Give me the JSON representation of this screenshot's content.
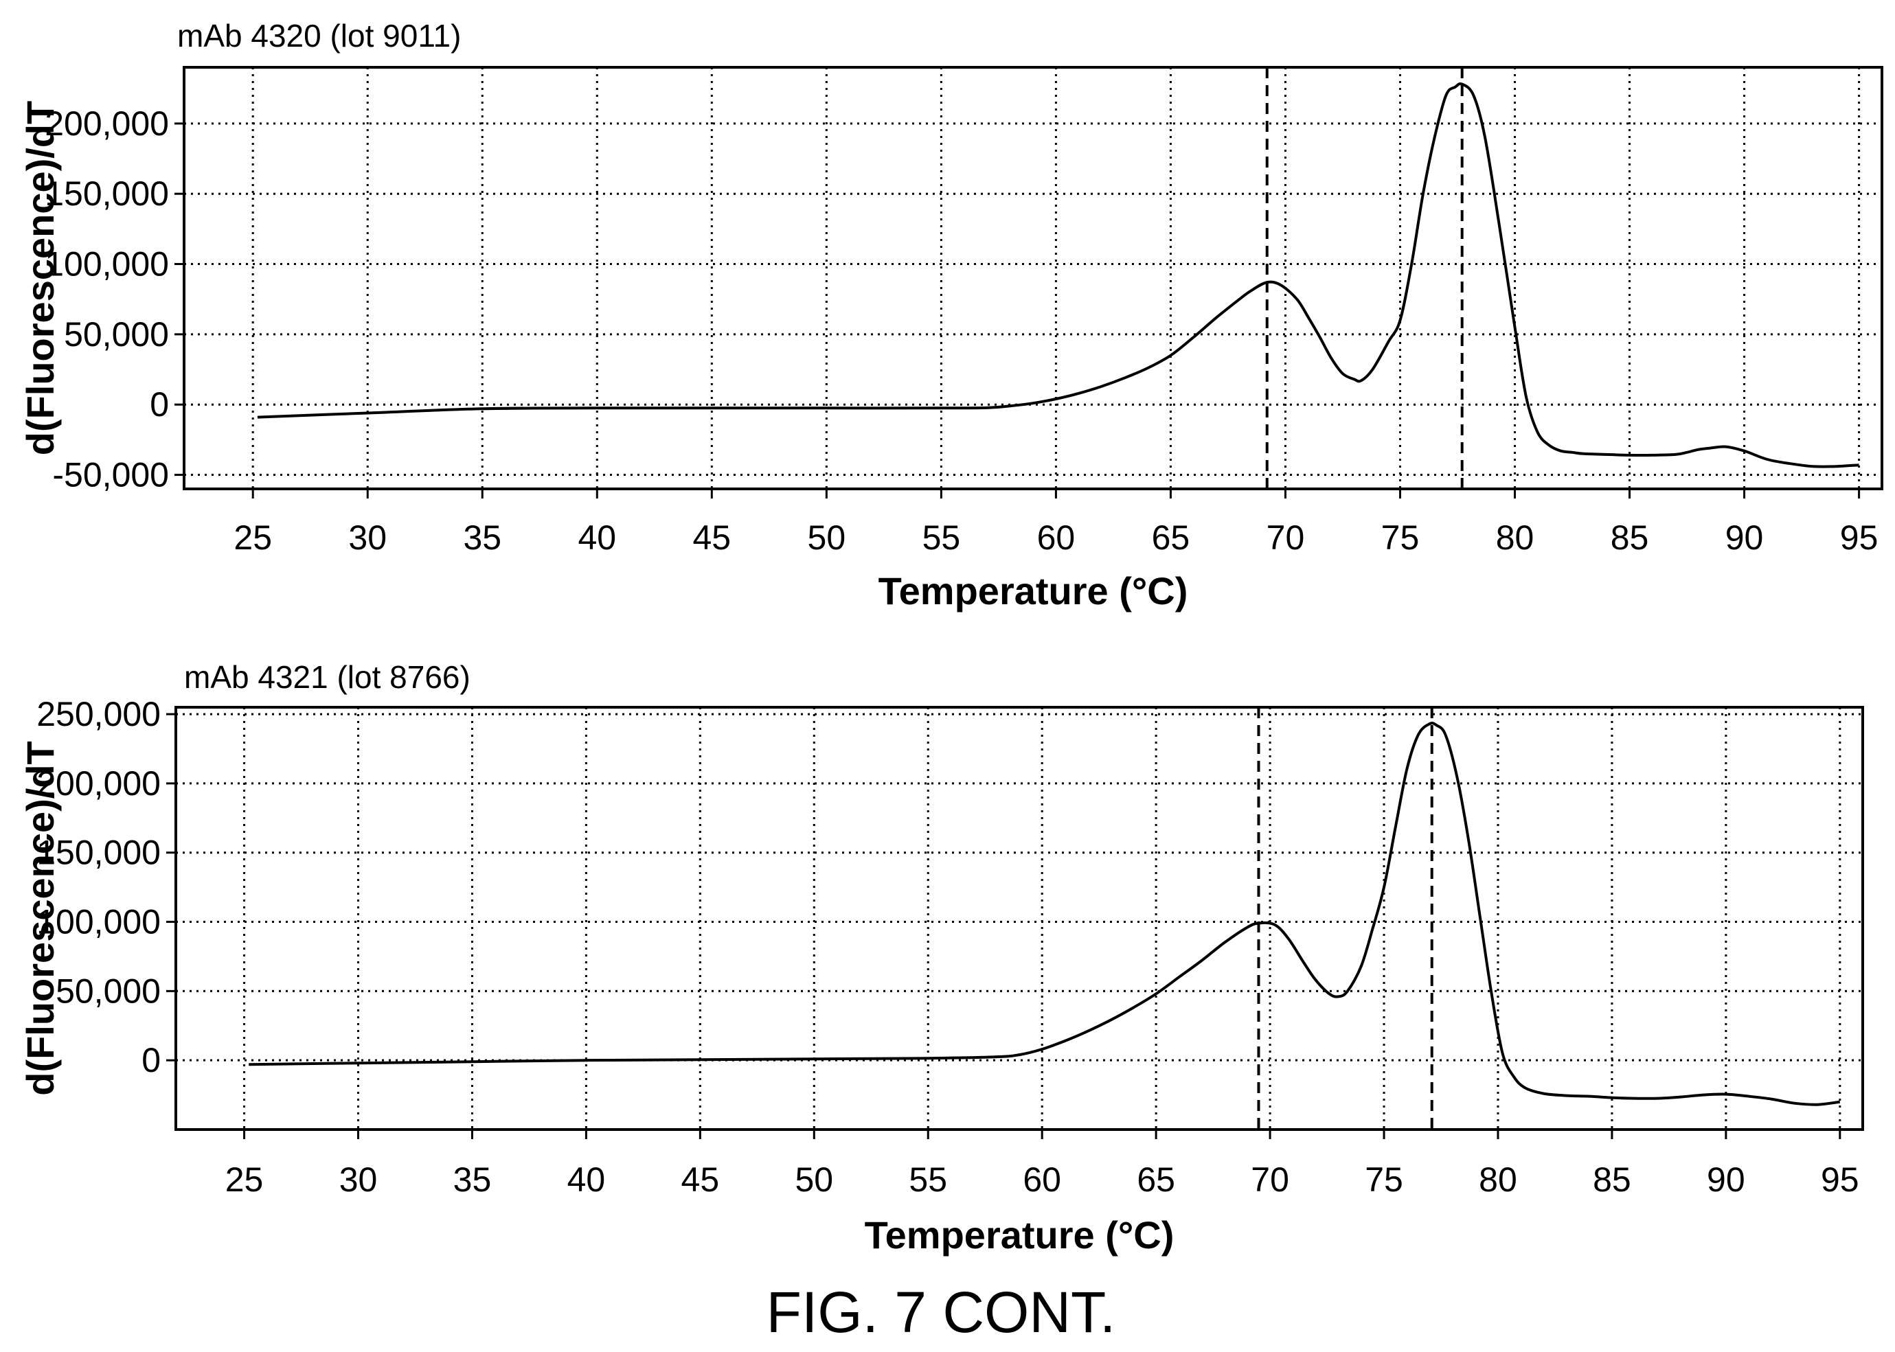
{
  "figure": {
    "caption": "FIG. 7 CONT."
  },
  "chart_data": [
    {
      "type": "line",
      "title": "mAb 4320 (lot 9011)",
      "xlabel": "Temperature (°C)",
      "ylabel": "d(Fluorescence)/dT",
      "xlim": [
        22,
        96
      ],
      "ylim": [
        -60000,
        240000
      ],
      "xticks": [
        25,
        30,
        35,
        40,
        45,
        50,
        55,
        60,
        65,
        70,
        75,
        80,
        85,
        90,
        95
      ],
      "xtick_labels": [
        "25",
        "30",
        "35",
        "40",
        "45",
        "50",
        "55",
        "60",
        "65",
        "70",
        "75",
        "80",
        "85",
        "90",
        "95"
      ],
      "yticks": [
        -50000,
        0,
        50000,
        100000,
        150000,
        200000
      ],
      "ytick_labels": [
        "-50,000",
        "0",
        "50,000",
        "100,000",
        "150,000",
        "200,000"
      ],
      "grid": true,
      "vertical_markers": [
        69.2,
        77.7
      ],
      "series": [
        {
          "x": [
            25.2,
            30,
            35,
            40,
            45,
            50,
            55,
            57,
            58,
            59,
            60,
            61,
            62,
            63,
            64,
            65,
            66,
            67,
            68,
            68.5,
            69.2,
            69.8,
            70.5,
            71,
            71.5,
            72,
            72.5,
            73,
            73.3,
            73.8,
            74.5,
            75,
            75.5,
            76,
            76.5,
            77,
            77.4,
            77.7,
            78.2,
            78.7,
            79.3,
            80,
            80.5,
            81,
            81.5,
            82,
            82.5,
            83,
            84,
            85,
            86,
            87,
            87.5,
            88,
            88.5,
            89.2,
            90,
            91,
            92,
            93,
            94,
            95
          ],
          "y": [
            -9000,
            -6000,
            -3000,
            -2500,
            -2500,
            -2500,
            -2500,
            -2300,
            -1000,
            1000,
            4000,
            8000,
            13000,
            19000,
            26000,
            35000,
            48000,
            62000,
            75000,
            81000,
            87000,
            85000,
            75000,
            62000,
            48000,
            33000,
            22000,
            18000,
            17000,
            25000,
            45000,
            60000,
            100000,
            150000,
            190000,
            220000,
            226000,
            228000,
            220000,
            190000,
            130000,
            55000,
            5000,
            -20000,
            -29000,
            -33000,
            -34000,
            -35000,
            -35500,
            -36000,
            -36000,
            -35500,
            -34000,
            -32000,
            -31000,
            -30000,
            -33000,
            -39000,
            -42000,
            -44000,
            -44000,
            -43000
          ]
        }
      ]
    },
    {
      "type": "line",
      "title": "mAb 4321 (lot 8766)",
      "xlabel": "Temperature (°C)",
      "ylabel": "d(Fluorescence)/dT",
      "xlim": [
        22,
        96
      ],
      "ylim": [
        -50000,
        255000
      ],
      "xticks": [
        25,
        30,
        35,
        40,
        45,
        50,
        55,
        60,
        65,
        70,
        75,
        80,
        85,
        90,
        95
      ],
      "xtick_labels": [
        "25",
        "30",
        "35",
        "40",
        "45",
        "50",
        "55",
        "60",
        "65",
        "70",
        "75",
        "80",
        "85",
        "90",
        "95"
      ],
      "yticks": [
        0,
        50000,
        100000,
        150000,
        200000,
        250000
      ],
      "ytick_labels": [
        "0",
        "50,000",
        "100,000",
        "150,000",
        "200,000",
        "250,000"
      ],
      "grid": true,
      "vertical_markers": [
        69.5,
        77.1
      ],
      "series": [
        {
          "x": [
            25.2,
            30,
            35,
            40,
            45,
            50,
            55,
            58,
            59,
            60,
            61,
            62,
            63,
            64,
            65,
            66,
            67,
            68,
            69,
            69.5,
            70.2,
            70.8,
            71.5,
            72,
            72.6,
            73,
            73.4,
            74,
            74.5,
            75,
            75.5,
            76,
            76.5,
            77,
            77.3,
            77.7,
            78.2,
            78.7,
            79.2,
            79.7,
            80.2,
            80.7,
            81.2,
            82,
            83,
            84,
            85,
            86,
            87,
            88,
            89,
            90,
            91,
            92,
            93,
            94,
            95
          ],
          "y": [
            -3000,
            -2000,
            -1000,
            0,
            500,
            1000,
            1500,
            2500,
            4000,
            8000,
            14000,
            21000,
            29000,
            38000,
            48000,
            60000,
            72000,
            85000,
            96000,
            99000,
            98000,
            88000,
            70000,
            58000,
            48000,
            46000,
            50000,
            68000,
            95000,
            125000,
            168000,
            210000,
            235000,
            243000,
            242000,
            235000,
            205000,
            160000,
            105000,
            50000,
            5000,
            -12000,
            -20000,
            -24000,
            -25500,
            -26000,
            -27000,
            -27500,
            -27500,
            -26500,
            -25000,
            -24500,
            -26000,
            -28000,
            -31000,
            -32000,
            -30000
          ]
        }
      ]
    }
  ]
}
